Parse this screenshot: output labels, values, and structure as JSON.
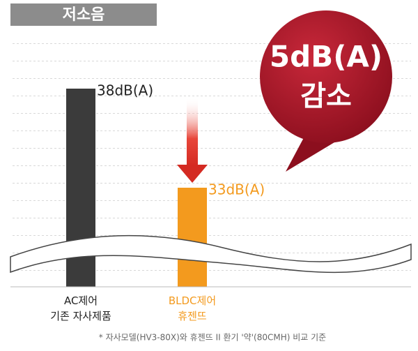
{
  "chart_data": {
    "type": "bar",
    "title": "저소음",
    "categories": [
      "AC제어\n기존 자사제품",
      "BLDC제어\n휴젠뜨"
    ],
    "values": [
      38,
      33
    ],
    "value_labels": [
      "38dB(A)",
      "33dB(A)"
    ],
    "colors": [
      "#3b3b3b",
      "#f39a1e"
    ],
    "label_colors": [
      "#222222",
      "#f39a1e"
    ],
    "ylim": [
      28,
      40
    ],
    "callout": [
      "5dB(A)",
      "감소"
    ],
    "footnote": "* 자사모델(HV3-80X)와 휴젠뜨 II  환기 '약'(80CMH) 비교 기준"
  }
}
